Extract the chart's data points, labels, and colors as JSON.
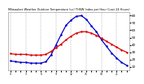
{
  "title": "Milwaukee Weather Outdoor Temperature (vs) THSW Index per Hour (Last 24 Hours)",
  "background_color": "#ffffff",
  "plot_bg_color": "#ffffff",
  "grid_color": "#aaaaaa",
  "title_color": "#000000",
  "tick_color": "#000000",
  "hours": [
    0,
    1,
    2,
    3,
    4,
    5,
    6,
    7,
    8,
    9,
    10,
    11,
    12,
    13,
    14,
    15,
    16,
    17,
    18,
    19,
    20,
    21,
    22,
    23
  ],
  "temp": [
    28,
    27,
    27,
    27,
    26,
    26,
    26,
    27,
    31,
    36,
    41,
    47,
    52,
    56,
    58,
    58,
    56,
    53,
    49,
    45,
    41,
    37,
    33,
    30
  ],
  "thsw": [
    18,
    17,
    16,
    16,
    15,
    15,
    15,
    17,
    26,
    40,
    54,
    67,
    74,
    79,
    80,
    75,
    66,
    58,
    47,
    38,
    29,
    22,
    16,
    12
  ],
  "temp_color": "#dd0000",
  "thsw_color": "#0000cc",
  "ylim": [
    5,
    85
  ],
  "yticks": [
    10,
    20,
    30,
    40,
    50,
    60,
    70,
    80
  ],
  "xlim": [
    -0.5,
    23.5
  ],
  "title_fontsize": 2.5,
  "tick_fontsize": 3.0,
  "xtick_fontsize": 2.2,
  "linewidth": 0.9,
  "marker_size": 1.8
}
